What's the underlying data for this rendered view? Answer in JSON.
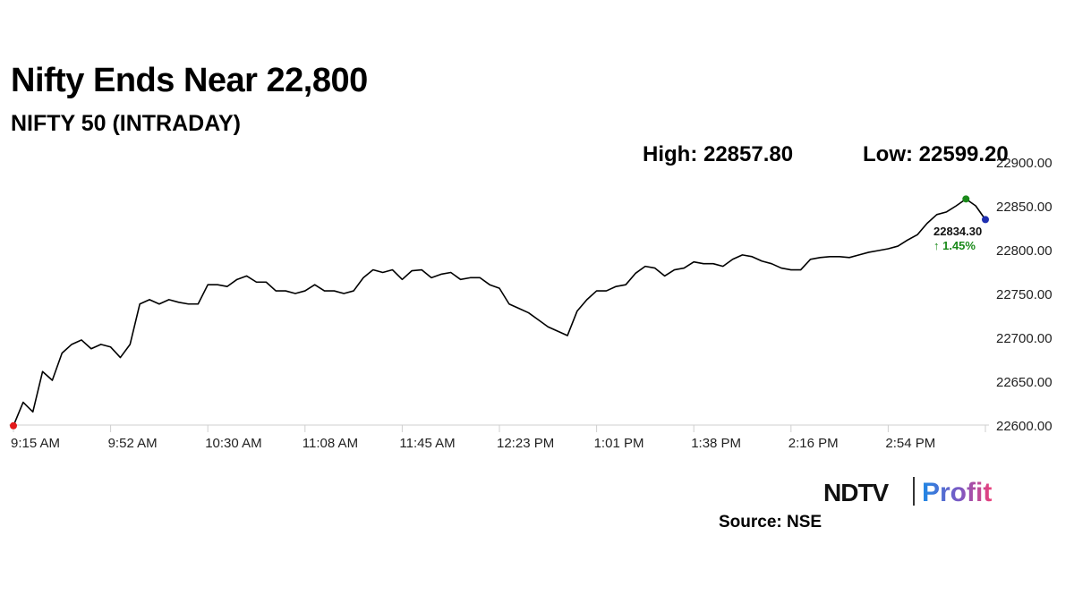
{
  "chart_data": {
    "type": "line",
    "title": "Nifty Ends Near 22,800",
    "subtitle": "NIFTY 50 (INTRADAY)",
    "annotations": {
      "high": "High: 22857.80",
      "low": "Low: 22599.20",
      "close": "22834.30",
      "change": "↑ 1.45%"
    },
    "color": "#000000",
    "markers": {
      "low": {
        "color": "#e31a1c"
      },
      "high": {
        "color": "#1a8a1a"
      },
      "close": {
        "color": "#1f2fb0"
      }
    },
    "categories": [
      "9:15 AM",
      null,
      null,
      null,
      null,
      null,
      null,
      null,
      null,
      null,
      "9:52 AM",
      null,
      null,
      null,
      null,
      null,
      null,
      null,
      null,
      null,
      "10:30 AM",
      null,
      null,
      null,
      null,
      null,
      null,
      null,
      null,
      null,
      "11:08 AM",
      null,
      null,
      null,
      null,
      null,
      null,
      null,
      null,
      null,
      "11:45 AM",
      null,
      null,
      null,
      null,
      null,
      null,
      null,
      null,
      null,
      "12:23 PM",
      null,
      null,
      null,
      null,
      null,
      null,
      null,
      null,
      null,
      "1:01 PM",
      null,
      null,
      null,
      null,
      null,
      null,
      null,
      null,
      null,
      "1:38 PM",
      null,
      null,
      null,
      null,
      null,
      null,
      null,
      null,
      null,
      "2:16 PM",
      null,
      null,
      null,
      null,
      null,
      null,
      null,
      null,
      null,
      "2:54 PM",
      null,
      null,
      null,
      null,
      null,
      null,
      null,
      null,
      null,
      null
    ],
    "values": [
      22599.2,
      22626,
      22615,
      22661,
      22651,
      22682,
      22692,
      22697,
      22687,
      22692,
      22689,
      22677,
      22692,
      22738,
      22743,
      22738,
      22743,
      22740,
      22738,
      22738,
      22760,
      22760,
      22758,
      22766,
      22770,
      22763,
      22763,
      22753,
      22753,
      22750,
      22753,
      22760,
      22753,
      22753,
      22750,
      22753,
      22768,
      22777,
      22774,
      22777,
      22766,
      22776,
      22777,
      22768,
      22772,
      22774,
      22766,
      22768,
      22768,
      22760,
      22756,
      22738,
      22733,
      22728,
      22720,
      22712,
      22707,
      22702,
      22730,
      22743,
      22753,
      22753,
      22758,
      22760,
      22773,
      22781,
      22779,
      22770,
      22777,
      22779,
      22786,
      22784,
      22784,
      22781,
      22789,
      22794,
      22792,
      22787,
      22784,
      22779,
      22777,
      22777,
      22789,
      22791,
      22792,
      22792,
      22791,
      22794,
      22797,
      22799,
      22801,
      22804,
      22811,
      22817,
      22830,
      22840,
      22843,
      22850,
      22857.8,
      22850,
      22834.3
    ],
    "ylim": [
      22600,
      22900
    ],
    "yticks": [
      {
        "value": 22600,
        "label": "22600.00"
      },
      {
        "value": 22650,
        "label": "22650.00"
      },
      {
        "value": 22700,
        "label": "22700.00"
      },
      {
        "value": 22750,
        "label": "22750.00"
      },
      {
        "value": 22800,
        "label": "22800.00"
      },
      {
        "value": 22850,
        "label": "22850.00"
      },
      {
        "value": 22900,
        "label": "22900.00"
      }
    ],
    "grid": false
  },
  "source": "Source: NSE",
  "logo": {
    "left": "NDTV",
    "right": "Profit"
  }
}
